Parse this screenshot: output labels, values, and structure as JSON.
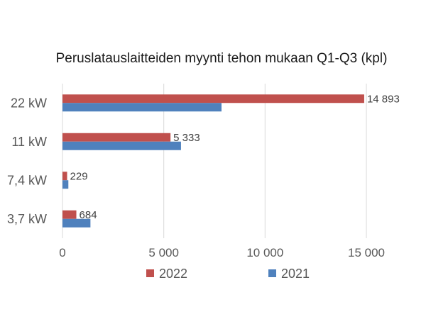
{
  "chart_data": {
    "type": "bar",
    "orientation": "horizontal",
    "title": "Peruslatauslaitteiden myynti tehon mukaan Q1-Q3 (kpl)",
    "xlabel": "",
    "ylabel": "",
    "categories": [
      "22 kW",
      "11 kW",
      "7,4 kW",
      "3,7 kW"
    ],
    "series": [
      {
        "name": "2022",
        "color": "#c0504d",
        "values": [
          14893,
          5333,
          229,
          684
        ],
        "labels": [
          "14 893",
          "5 333",
          "229",
          "684"
        ]
      },
      {
        "name": "2021",
        "color": "#4f81bd",
        "values": [
          7850,
          5850,
          290,
          1380
        ]
      }
    ],
    "xlim": [
      0,
      15000
    ],
    "xticks": [
      0,
      5000,
      10000,
      15000
    ],
    "xtick_labels": [
      "0",
      "5 000",
      "10 000",
      "15 000"
    ],
    "grid": "vertical",
    "grid_color": "#d9d9d9",
    "legend_position": "bottom"
  }
}
